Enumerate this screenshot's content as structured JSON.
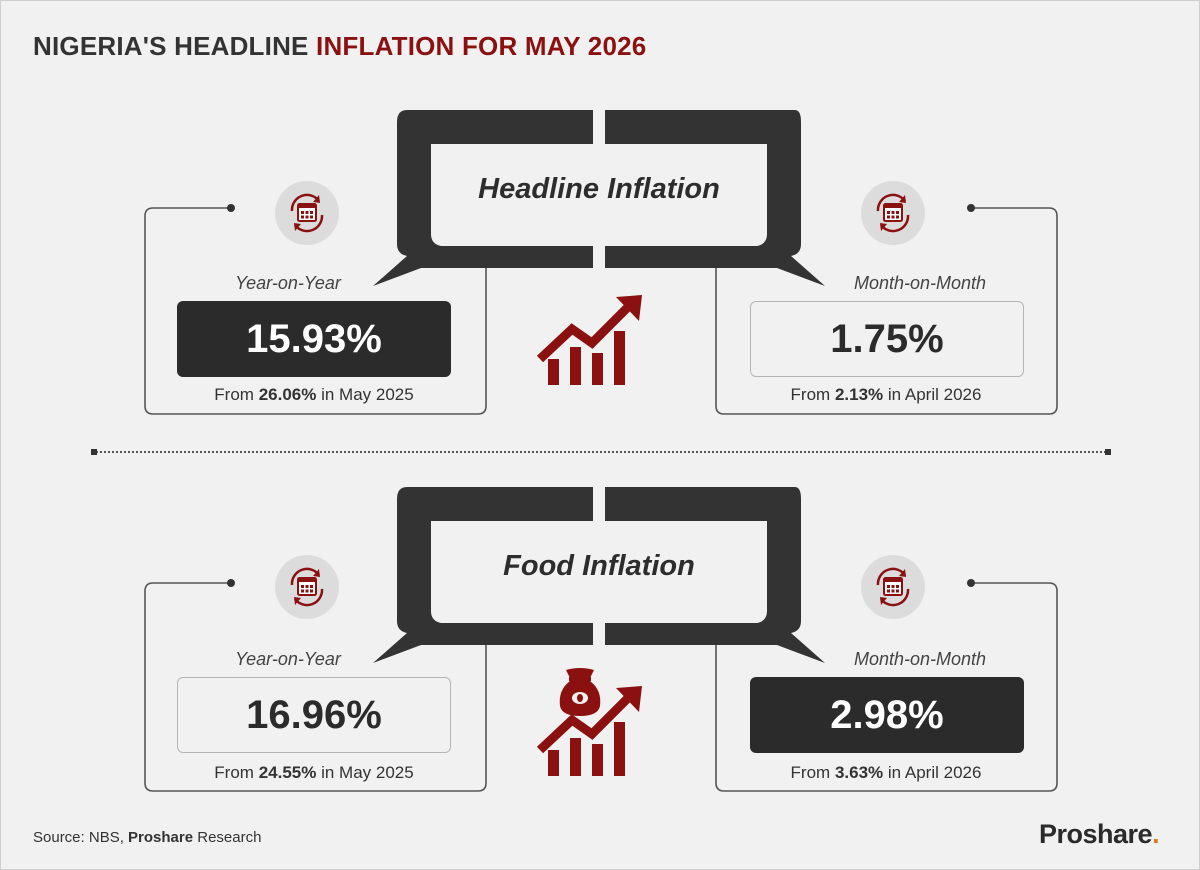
{
  "title": {
    "part1": "NIGERIA'S HEADLINE ",
    "part2": "INFLATION FOR MAY 2026"
  },
  "sections": [
    {
      "heading": "Headline Inflation",
      "left": {
        "period": "Year-on-Year",
        "value": "15.93%",
        "from_prefix": "From ",
        "from_value": "26.06%",
        "from_suffix": " in May 2025",
        "style": "dark"
      },
      "right": {
        "period": "Month-on-Month",
        "value": "1.75%",
        "from_prefix": "From ",
        "from_value": "2.13%",
        "from_suffix": " in April 2026",
        "style": "light"
      },
      "center_icon": "rising-bar-chart-icon"
    },
    {
      "heading": "Food Inflation",
      "left": {
        "period": "Year-on-Year",
        "value": "16.96%",
        "from_prefix": "From ",
        "from_value": "24.55%",
        "from_suffix": " in May 2025",
        "style": "light"
      },
      "right": {
        "period": "Month-on-Month",
        "value": "2.98%",
        "from_prefix": "From ",
        "from_value": "3.63%",
        "from_suffix": " in April 2026",
        "style": "dark"
      },
      "center_icon": "food-sack-rising-chart-icon"
    }
  ],
  "period_icon": "calendar-refresh-icon",
  "source": {
    "prefix": "Source: NBS, ",
    "bold": "Proshare",
    "suffix": " Research"
  },
  "logo": {
    "text": "Proshare",
    "dot": "."
  },
  "colors": {
    "accent": "#8b1111",
    "dark": "#2b2b2b",
    "logo_dot": "#e07a1f",
    "background": "#f1f1f1"
  }
}
